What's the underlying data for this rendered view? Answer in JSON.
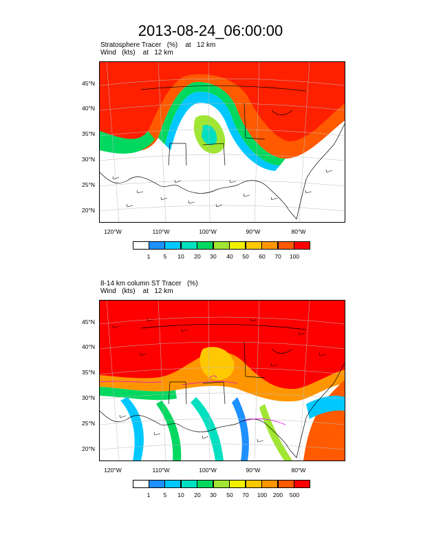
{
  "title": "2013-08-24_06:00:00",
  "panels": [
    {
      "subtitle_line1": "Stratosphere Tracer   (%)    at   12 km",
      "subtitle_line2": "Wind   (kts)    at   12 km",
      "lat_labels": [
        "45°N",
        "40°N",
        "35°N",
        "30°N",
        "25°N",
        "20°N"
      ],
      "lon_labels": [
        "120°W",
        "110°W",
        "100°W",
        "90°W",
        "80°W"
      ],
      "colorbar_labels": [
        "1",
        "5",
        "10",
        "20",
        "30",
        "40",
        "50",
        "60",
        "70",
        "100"
      ]
    },
    {
      "subtitle_line1": "8-14 km column ST Tracer   (%)",
      "subtitle_line2": "Wind   (kts)    at   12 km",
      "lat_labels": [
        "45°N",
        "40°N",
        "35°N",
        "30°N",
        "25°N",
        "20°N"
      ],
      "lon_labels": [
        "120°W",
        "110°W",
        "100°W",
        "90°W",
        "80°W"
      ],
      "colorbar_labels": [
        "1",
        "5",
        "10",
        "20",
        "30",
        "50",
        "70",
        "100",
        "200",
        "500"
      ]
    }
  ],
  "colors": {
    "scale": [
      "#ffffff",
      "#1e90ff",
      "#00c8ff",
      "#00e0c0",
      "#00d860",
      "#a0e632",
      "#f0f000",
      "#ffc800",
      "#ff9600",
      "#ff5a00",
      "#ff0000"
    ]
  }
}
